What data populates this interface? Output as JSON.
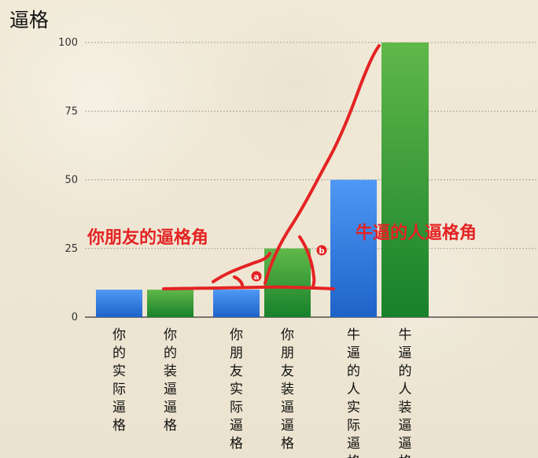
{
  "chart_data": {
    "type": "bar",
    "title": "逼格",
    "categories": [
      "你的实际逼格",
      "你的装逼逼格",
      "你朋友实际逼格",
      "你朋友装逼逼格",
      "牛逼的人实际逼格",
      "牛逼的人装逼逼格"
    ],
    "values": [
      10,
      10,
      10,
      25,
      50,
      100
    ],
    "bar_colors": [
      "#3d86ea",
      "#2ca438",
      "#3d86ea",
      "#2ca438",
      "#3d86ea",
      "#2ca438"
    ],
    "ylim": [
      0,
      100
    ],
    "yticks": [
      0,
      25,
      50,
      75,
      100
    ],
    "grid": true,
    "annotations": {
      "left": "你朋友的逼格角",
      "right": "牛逼的人逼格角",
      "point_a": "a",
      "point_b": "b"
    },
    "annotation_color": "#e42323"
  }
}
